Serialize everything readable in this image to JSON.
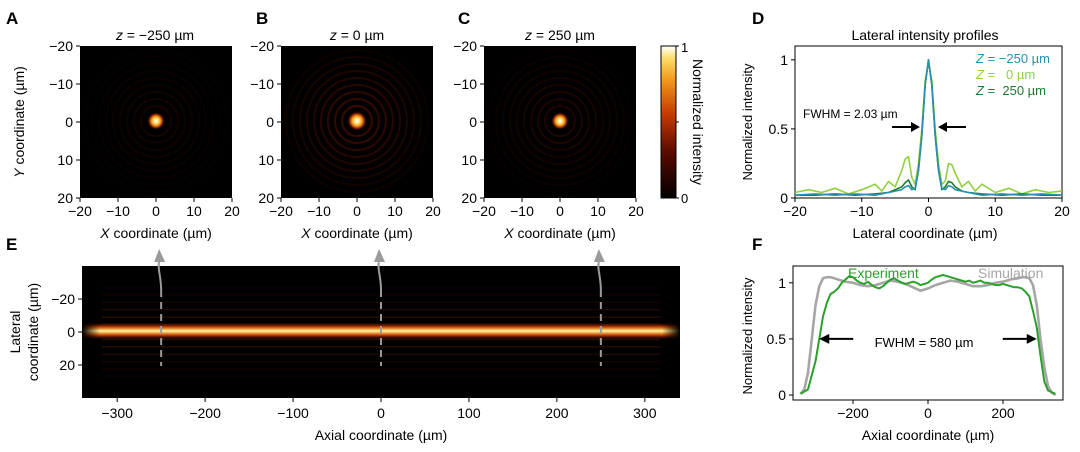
{
  "panels": {
    "A": {
      "letter": "A",
      "title": "z = −250 µm",
      "z_prefix": "z",
      "z_rest": " = −250 µm",
      "spot_ring_strength": 0.35
    },
    "B": {
      "letter": "B",
      "title": "z = 0 µm",
      "z_prefix": "z",
      "z_rest": " = 0 µm",
      "spot_ring_strength": 1.0
    },
    "C": {
      "letter": "C",
      "title": "z = 250 µm",
      "z_prefix": "z",
      "z_rest": " = 250 µm",
      "spot_ring_strength": 0.55
    }
  },
  "image_axes": {
    "ylabel_italic": "Y",
    "ylabel_rest": " coordinate (µm)",
    "xlabel_italic": "X",
    "xlabel_rest": " coordinate (µm)",
    "yticks": [
      "−20",
      "−10",
      "0",
      "10",
      "20"
    ],
    "xticks": [
      "−20",
      "−10",
      "0",
      "10",
      "20"
    ]
  },
  "colorbar": {
    "label": "Normalized intensity",
    "top": "1",
    "bottom": "0"
  },
  "chart_data": [
    {
      "panel": "D",
      "type": "line",
      "title": "Lateral intensity profiles",
      "xlabel": "Lateral coordinate (µm)",
      "ylabel": "Normalized intensity",
      "xlim": [
        -20,
        20
      ],
      "ylim": [
        0,
        1.1
      ],
      "xticks": [
        -20,
        -10,
        0,
        10,
        20
      ],
      "yticks": [
        0,
        0.5,
        1
      ],
      "xtick_labels": [
        "−20",
        "−10",
        "0",
        "10",
        "20"
      ],
      "ytick_labels": [
        "0",
        "0.5",
        "1"
      ],
      "annotation": "FWHM = 2.03 µm",
      "legend_placement": "top-right",
      "series": [
        {
          "name": "Z = −250 µm",
          "legend_z": "Z",
          "legend_rest": " = −250 µm",
          "color": "#2a8fb0",
          "x": [
            -20,
            -17,
            -14,
            -11,
            -8,
            -6,
            -5,
            -4,
            -3.5,
            -3,
            -2.5,
            -2,
            -1.5,
            -1,
            -0.5,
            0,
            0.5,
            1,
            1.5,
            2,
            2.5,
            3,
            3.5,
            4,
            5,
            6,
            8,
            11,
            14,
            17,
            20
          ],
          "y": [
            0.02,
            0.03,
            0.02,
            0.03,
            0.02,
            0.04,
            0.05,
            0.06,
            0.08,
            0.09,
            0.06,
            0.07,
            0.2,
            0.45,
            0.82,
            1.0,
            0.82,
            0.45,
            0.2,
            0.07,
            0.06,
            0.09,
            0.08,
            0.06,
            0.05,
            0.04,
            0.02,
            0.03,
            0.02,
            0.03,
            0.02
          ]
        },
        {
          "name": "Z = 0 µm",
          "legend_z": "Z",
          "legend_rest": " =   0 µm",
          "color": "#8fd13f",
          "x": [
            -20,
            -18,
            -16,
            -14,
            -12,
            -10,
            -8,
            -7,
            -6,
            -5,
            -4,
            -3.5,
            -3,
            -2.5,
            -2,
            -1.5,
            -1,
            -0.5,
            0,
            0.5,
            1,
            1.5,
            2,
            2.5,
            3,
            3.5,
            4,
            5,
            6,
            7,
            8,
            10,
            12,
            14,
            16,
            18,
            20
          ],
          "y": [
            0.04,
            0.06,
            0.04,
            0.07,
            0.03,
            0.06,
            0.1,
            0.05,
            0.12,
            0.08,
            0.2,
            0.28,
            0.3,
            0.15,
            0.1,
            0.25,
            0.5,
            0.85,
            0.98,
            0.85,
            0.5,
            0.25,
            0.1,
            0.12,
            0.25,
            0.24,
            0.18,
            0.08,
            0.12,
            0.05,
            0.1,
            0.04,
            0.07,
            0.03,
            0.06,
            0.04,
            0.05
          ]
        },
        {
          "name": "Z = 250 µm",
          "legend_z": "Z",
          "legend_rest": " =  250 µm",
          "color": "#1e7a2e",
          "x": [
            -20,
            -17,
            -14,
            -11,
            -8,
            -6,
            -5,
            -4,
            -3.5,
            -3,
            -2.5,
            -2,
            -1.5,
            -1,
            -0.5,
            0,
            0.5,
            1,
            1.5,
            2,
            2.5,
            3,
            3.5,
            4,
            5,
            6,
            8,
            11,
            14,
            17,
            20
          ],
          "y": [
            0.02,
            0.02,
            0.03,
            0.02,
            0.03,
            0.04,
            0.06,
            0.08,
            0.11,
            0.13,
            0.08,
            0.06,
            0.2,
            0.45,
            0.82,
            1.0,
            0.82,
            0.45,
            0.2,
            0.06,
            0.08,
            0.12,
            0.11,
            0.08,
            0.05,
            0.04,
            0.03,
            0.02,
            0.03,
            0.02,
            0.02
          ]
        }
      ]
    },
    {
      "panel": "E",
      "type": "heatmap",
      "xlabel": "Axial coordinate (µm)",
      "ylabel": "Lateral coordinate (µm)",
      "xlim": [
        -340,
        340
      ],
      "ylim": [
        -40,
        40
      ],
      "xticks": [
        -300,
        -200,
        -100,
        0,
        100,
        200,
        300
      ],
      "yticks": [
        -20,
        0,
        20
      ],
      "xtick_labels": [
        "−300",
        "−200",
        "−100",
        "0",
        "100",
        "200",
        "300"
      ],
      "ytick_labels": [
        "−20",
        "0",
        "20"
      ],
      "marker_positions": [
        -250,
        0,
        250
      ]
    },
    {
      "panel": "F",
      "type": "line",
      "xlabel": "Axial coordinate (µm)",
      "ylabel": "Normalized intensity",
      "xlim": [
        -360,
        360
      ],
      "ylim": [
        0,
        1.15
      ],
      "xticks": [
        -200,
        0,
        200
      ],
      "yticks": [
        0,
        0.5,
        1
      ],
      "xtick_labels": [
        "−200",
        "0",
        "200"
      ],
      "ytick_labels": [
        "0",
        "0.5",
        "1"
      ],
      "annotation": "FWHM = 580 µm",
      "fwhm_range": [
        -290,
        290
      ],
      "series": [
        {
          "name": "Experiment",
          "color": "#2aa02a",
          "x": [
            -340,
            -320,
            -300,
            -290,
            -280,
            -270,
            -260,
            -250,
            -240,
            -230,
            -220,
            -210,
            -200,
            -190,
            -180,
            -170,
            -160,
            -150,
            -140,
            -130,
            -120,
            -110,
            -100,
            -90,
            -80,
            -70,
            -60,
            -50,
            -40,
            -30,
            -20,
            -10,
            0,
            10,
            20,
            30,
            40,
            50,
            60,
            70,
            80,
            90,
            100,
            110,
            120,
            130,
            140,
            150,
            160,
            170,
            180,
            190,
            200,
            210,
            220,
            230,
            240,
            250,
            260,
            270,
            280,
            290,
            300,
            310,
            320,
            340
          ],
          "y": [
            0.01,
            0.05,
            0.3,
            0.5,
            0.7,
            0.82,
            0.9,
            0.92,
            0.95,
            1.0,
            1.03,
            1.06,
            1.05,
            1.02,
            1.0,
            0.99,
            1.01,
            0.98,
            0.96,
            0.95,
            0.97,
            1.0,
            1.03,
            1.04,
            1.02,
            1.0,
            0.99,
            1.0,
            1.01,
            1.0,
            0.98,
            0.99,
            1.0,
            1.03,
            1.05,
            1.06,
            1.07,
            1.06,
            1.05,
            1.04,
            1.03,
            1.02,
            1.01,
            1.02,
            1.0,
            1.01,
            1.02,
            1.0,
            1.0,
            0.99,
            0.98,
            0.98,
            0.99,
            0.98,
            0.97,
            0.96,
            0.96,
            0.95,
            0.92,
            0.88,
            0.75,
            0.6,
            0.35,
            0.12,
            0.04,
            0.01
          ]
        },
        {
          "name": "Simulation",
          "color": "#a6a6a6",
          "x": [
            -340,
            -330,
            -320,
            -310,
            -300,
            -290,
            -280,
            -270,
            -260,
            -250,
            -240,
            -220,
            -200,
            -180,
            -160,
            -140,
            -120,
            -100,
            -80,
            -60,
            -40,
            -20,
            0,
            20,
            40,
            60,
            80,
            100,
            120,
            140,
            160,
            180,
            200,
            220,
            240,
            250,
            260,
            270,
            280,
            290,
            300,
            310,
            320,
            330,
            340
          ],
          "y": [
            0.01,
            0.05,
            0.2,
            0.5,
            0.8,
            0.97,
            1.04,
            1.05,
            1.05,
            1.04,
            1.03,
            1.01,
            1.0,
            0.98,
            0.97,
            0.98,
            1.0,
            1.02,
            1.01,
            0.99,
            0.96,
            0.93,
            0.95,
            0.98,
            1.0,
            1.02,
            1.01,
            0.99,
            0.97,
            0.97,
            0.98,
            1.0,
            1.01,
            1.03,
            1.04,
            1.05,
            1.05,
            1.04,
            0.98,
            0.8,
            0.5,
            0.25,
            0.08,
            0.02,
            0.0
          ]
        }
      ]
    }
  ],
  "panel_letters": {
    "D": "D",
    "E": "E",
    "F": "F"
  }
}
